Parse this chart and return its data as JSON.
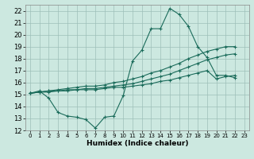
{
  "xlabel": "Humidex (Indice chaleur)",
  "xlim": [
    -0.5,
    23.5
  ],
  "ylim": [
    12,
    22.5
  ],
  "yticks": [
    12,
    13,
    14,
    15,
    16,
    17,
    18,
    19,
    20,
    21,
    22
  ],
  "xticks": [
    0,
    1,
    2,
    3,
    4,
    5,
    6,
    7,
    8,
    9,
    10,
    11,
    12,
    13,
    14,
    15,
    16,
    17,
    18,
    19,
    20,
    21,
    22,
    23
  ],
  "bg_color": "#cce8e0",
  "grid_color": "#9dbfb8",
  "line_color": "#1a6b5a",
  "series_main": [
    15.1,
    15.3,
    14.7,
    13.5,
    13.2,
    13.1,
    12.9,
    12.2,
    13.1,
    13.2,
    14.9,
    17.8,
    18.7,
    20.5,
    20.5,
    22.2,
    21.7,
    20.7,
    19.0,
    18.1,
    16.6,
    16.6,
    16.4
  ],
  "series_line1": [
    15.1,
    15.2,
    15.3,
    15.3,
    15.4,
    15.4,
    15.5,
    15.5,
    15.6,
    15.7,
    15.8,
    15.9,
    16.1,
    16.3,
    16.5,
    16.7,
    17.0,
    17.3,
    17.6,
    17.9,
    18.1,
    18.3,
    18.4
  ],
  "series_line2": [
    15.1,
    15.2,
    15.3,
    15.4,
    15.5,
    15.6,
    15.7,
    15.7,
    15.8,
    16.0,
    16.1,
    16.3,
    16.5,
    16.8,
    17.0,
    17.3,
    17.6,
    18.0,
    18.3,
    18.6,
    18.8,
    19.0,
    19.0
  ],
  "series_line3": [
    15.1,
    15.2,
    15.2,
    15.3,
    15.3,
    15.4,
    15.4,
    15.4,
    15.5,
    15.6,
    15.6,
    15.7,
    15.8,
    15.9,
    16.1,
    16.2,
    16.4,
    16.6,
    16.8,
    17.0,
    16.3,
    16.5,
    16.6
  ]
}
